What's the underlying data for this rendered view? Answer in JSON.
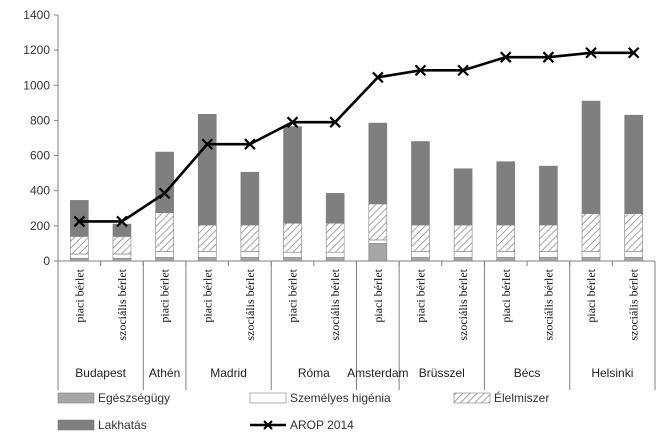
{
  "chart_data": {
    "type": "bar",
    "stacked": true,
    "title": "",
    "xlabel": "",
    "ylabel": "",
    "ylim": [
      0,
      1400
    ],
    "yticks": [
      0,
      200,
      400,
      600,
      800,
      1000,
      1200,
      1400
    ],
    "grid": false,
    "legend_position": "bottom",
    "categories": [
      "piaci bérlet",
      "szociális bérlet",
      "piaci bérlet",
      "piaci bérlet",
      "szociális bérlet",
      "piaci bérlet",
      "szociális bérlet",
      "piaci bérlet",
      "piaci bérlet",
      "szociális bérlet",
      "piaci bérlet",
      "szociális bérlet",
      "piaci bérlet",
      "szociális bérlet"
    ],
    "groups": [
      {
        "label": "Budapest",
        "span": [
          0,
          1
        ]
      },
      {
        "label": "Athén",
        "span": [
          2,
          2
        ]
      },
      {
        "label": "Madrid",
        "span": [
          3,
          4
        ]
      },
      {
        "label": "Róma",
        "span": [
          5,
          6
        ]
      },
      {
        "label": "Amsterdam",
        "span": [
          7,
          7
        ]
      },
      {
        "label": "Brüsszel",
        "span": [
          8,
          9
        ]
      },
      {
        "label": "Bécs",
        "span": [
          10,
          11
        ]
      },
      {
        "label": "Helsinki",
        "span": [
          12,
          13
        ]
      }
    ],
    "series": [
      {
        "name": "Egészségügy",
        "kind": "bar",
        "color": "#a6a6a6",
        "pattern": "solid",
        "values": [
          15,
          15,
          20,
          20,
          20,
          20,
          20,
          100,
          20,
          20,
          20,
          20,
          20,
          20
        ]
      },
      {
        "name": "Személyes higénia",
        "kind": "bar",
        "color": "#ffffff",
        "pattern": "solid",
        "values": [
          25,
          25,
          35,
          35,
          35,
          30,
          30,
          20,
          35,
          35,
          35,
          35,
          35,
          35
        ]
      },
      {
        "name": "Élelmiszer",
        "kind": "bar",
        "color": "#ffffff",
        "pattern": "hatch",
        "values": [
          100,
          100,
          220,
          150,
          150,
          165,
          165,
          205,
          150,
          150,
          150,
          150,
          215,
          215
        ]
      },
      {
        "name": "Lakhatás",
        "kind": "bar",
        "color": "#7f7f7f",
        "pattern": "solid",
        "values": [
          205,
          70,
          345,
          630,
          300,
          550,
          170,
          460,
          475,
          320,
          360,
          335,
          640,
          560
        ]
      },
      {
        "name": "AROP 2014",
        "kind": "line",
        "color": "#000000",
        "marker": "x",
        "values": [
          225,
          225,
          385,
          665,
          665,
          790,
          790,
          1045,
          1085,
          1085,
          1160,
          1160,
          1185,
          1185
        ]
      }
    ]
  },
  "legend": {
    "items": [
      {
        "label": "Egészségügy",
        "series": 0
      },
      {
        "label": "Személyes higénia",
        "series": 1
      },
      {
        "label": "Élelmiszer",
        "series": 2
      },
      {
        "label": "Lakhatás",
        "series": 3
      },
      {
        "label": "AROP 2014",
        "series": 4
      }
    ]
  },
  "colors": {
    "axis": "#808080",
    "hatch": "#8c8c8c",
    "bar_outline": "#7f7f7f",
    "line": "#000000"
  }
}
